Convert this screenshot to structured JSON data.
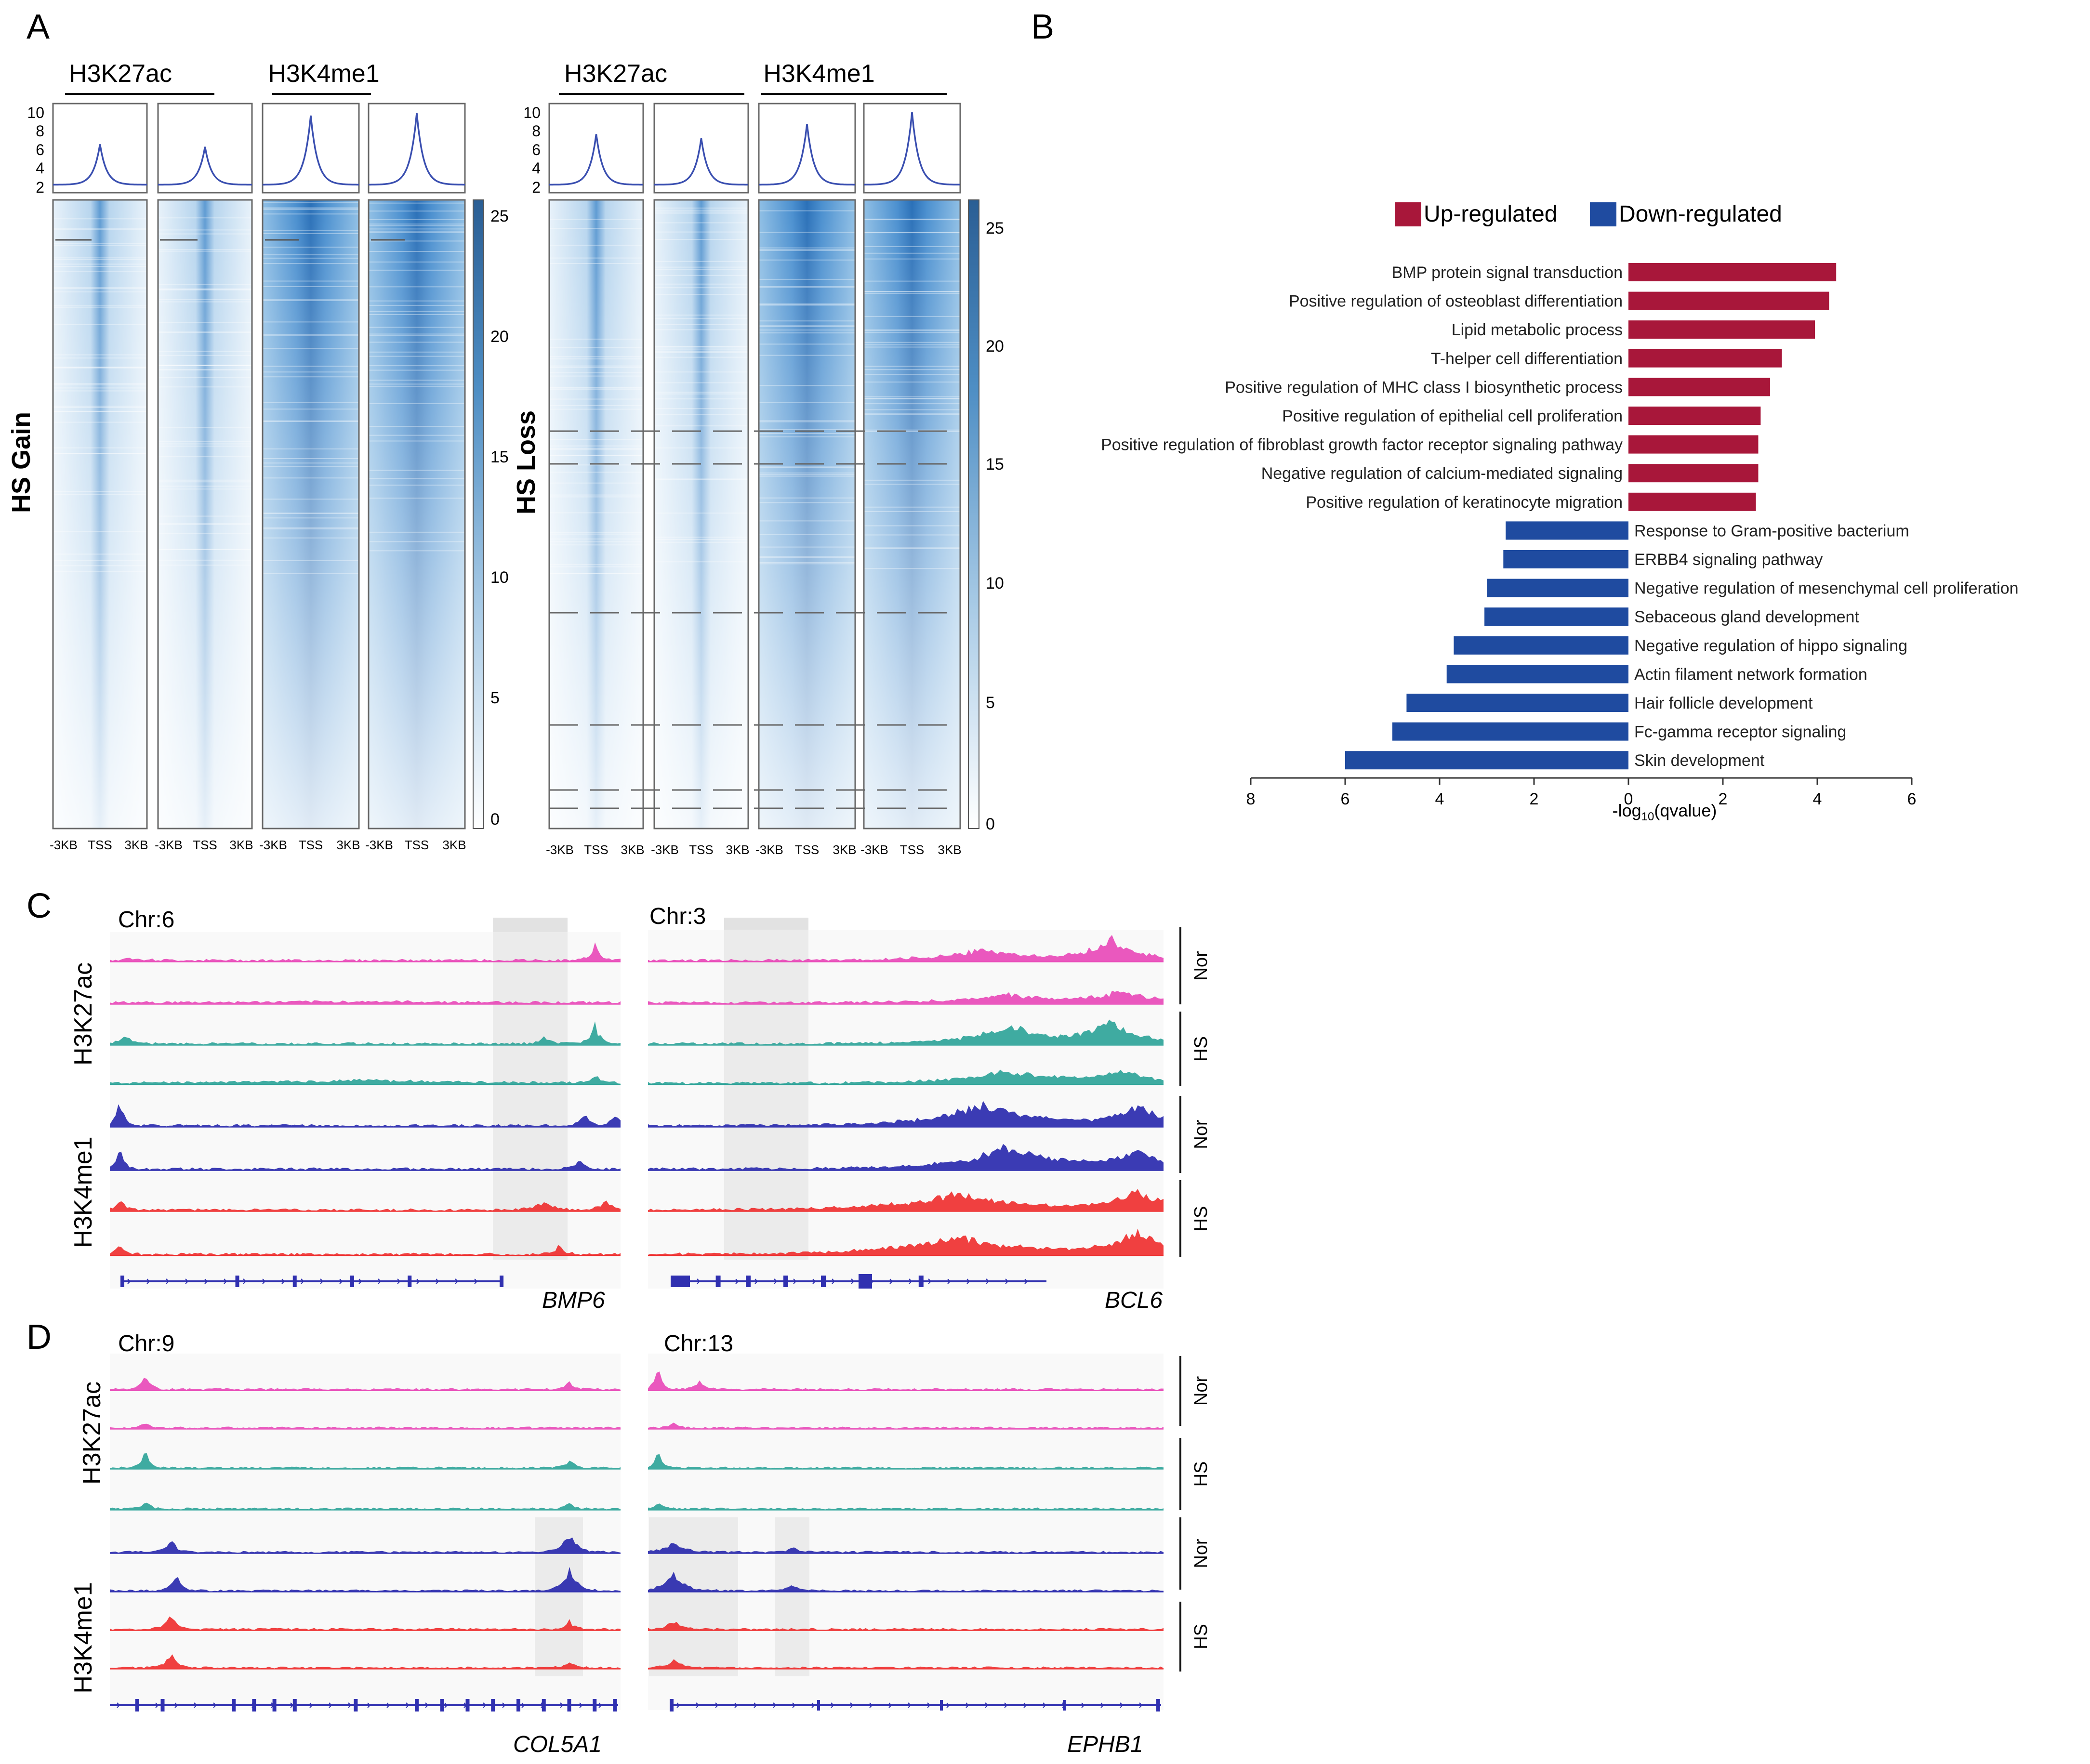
{
  "panels": {
    "A": "A",
    "B": "B",
    "C": "C",
    "D": "D"
  },
  "panel_a": {
    "marks": [
      "H3K27ac",
      "H3K4me1"
    ],
    "gain_label": "HS Gain",
    "loss_label": "HS Loss",
    "profile_ticks": [
      "10",
      "8",
      "6",
      "4",
      "2"
    ],
    "colorbar_ticks": [
      "25",
      "20",
      "15",
      "10",
      "5",
      "0"
    ],
    "x_tick_labels": [
      "-3KB",
      "TSS",
      "3KB"
    ],
    "colors": {
      "profile_line": "#3a4fb0",
      "heat_dark": "#2a70b8",
      "heat_light": "#f5f9fd",
      "colorbar_top": "#2f6598"
    }
  },
  "chart_data": {
    "type": "bar",
    "orientation": "horizontal",
    "title": "",
    "xlabel_parts": [
      "-log",
      "10",
      "(qvalue)"
    ],
    "legend": [
      {
        "label": "Up-regulated",
        "color": "#a8173a"
      },
      {
        "label": "Down-regulated",
        "color": "#1f4ba0"
      }
    ],
    "categories": [
      "BMP protein signal transduction",
      "Positive regulation of osteoblast differentiation",
      "Lipid metabolic process",
      "T-helper cell differentiation",
      "Positive regulation of MHC class I biosynthetic process",
      "Positive regulation of epithelial cell proliferation",
      "Positive regulation of fibroblast growth factor receptor signaling pathway",
      "Negative regulation of calcium-mediated signaling",
      "Positive regulation of keratinocyte migration",
      "Response to Gram-positive bacterium",
      "ERBB4 signaling pathway",
      "Negative regulation of mesenchymal cell proliferation",
      "Sebaceous gland development",
      "Negative regulation of hippo signaling",
      "Actin filament network formation",
      "Hair follicle development",
      "Fc-gamma receptor signaling",
      "Skin development"
    ],
    "values": [
      4.4,
      4.25,
      3.95,
      3.25,
      3.0,
      2.8,
      2.75,
      2.75,
      2.7,
      -2.6,
      -2.65,
      -3.0,
      -3.05,
      -3.7,
      -3.85,
      -4.7,
      -5.0,
      -6.0
    ],
    "groups": [
      "up",
      "up",
      "up",
      "up",
      "up",
      "up",
      "up",
      "up",
      "up",
      "down",
      "down",
      "down",
      "down",
      "down",
      "down",
      "down",
      "down",
      "down"
    ],
    "xlim": [
      -8,
      6
    ],
    "x_ticks": [
      -8,
      -6,
      -4,
      -2,
      0,
      2,
      4,
      6
    ],
    "x_tick_labels": [
      "8",
      "6",
      "4",
      "2",
      "0",
      "2",
      "4",
      "6"
    ]
  },
  "panel_c": {
    "left": {
      "chromosome": "Chr:6",
      "gene": "BMP6"
    },
    "right": {
      "chromosome": "Chr:3",
      "gene": "BCL6"
    }
  },
  "panel_d": {
    "left": {
      "chromosome": "Chr:9",
      "gene": "COL5A1"
    },
    "right": {
      "chromosome": "Chr:13",
      "gene": "EPHB1"
    }
  },
  "track_labels": {
    "marks": [
      "H3K27ac",
      "H3K4me1"
    ],
    "conditions": [
      "Nor",
      "HS",
      "Nor",
      "HS"
    ]
  },
  "track_colors": {
    "h3k27ac_nor": "#e83cb4",
    "h3k27ac_hs": "#1f9e92",
    "h3k4me1_nor": "#1a1aa8",
    "h3k4me1_hs": "#ee2020",
    "gene": "#3030b0",
    "highlight": "#d9d9d9"
  }
}
